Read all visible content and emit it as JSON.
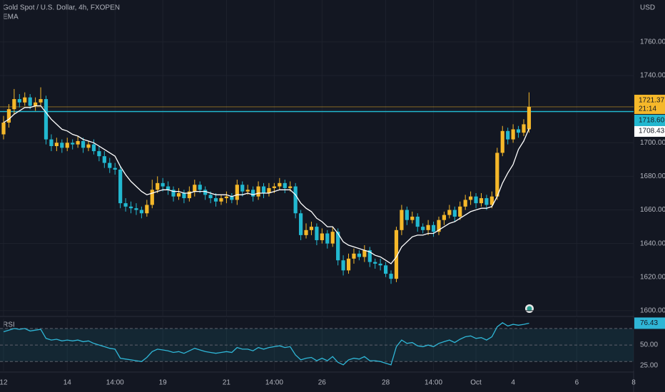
{
  "chart_data": [
    {
      "type": "candlestick",
      "title": "Gold Spot / U.S. Dollar, 4h, FXOPEN",
      "currency": "USD",
      "countdown": "21:14",
      "up_color": "#f5b82a",
      "down_color": "#22b8d0",
      "open": [
        1705,
        1712,
        1720,
        1726,
        1724,
        1727,
        1722,
        1724,
        1726,
        1702,
        1698,
        1700,
        1697,
        1700,
        1699,
        1701,
        1697,
        1699,
        1695,
        1692,
        1688,
        1685,
        1684,
        1664,
        1662,
        1661,
        1660,
        1658,
        1663,
        1672,
        1676,
        1674,
        1672,
        1668,
        1670,
        1667,
        1671,
        1675,
        1672,
        1669,
        1667,
        1665,
        1667,
        1668,
        1666,
        1675,
        1671,
        1672,
        1668,
        1674,
        1670,
        1673,
        1674,
        1676,
        1673,
        1674,
        1658,
        1645,
        1648,
        1650,
        1642,
        1646,
        1640,
        1647,
        1630,
        1624,
        1631,
        1634,
        1632,
        1636,
        1629,
        1628,
        1627,
        1622,
        1619,
        1648,
        1660,
        1654,
        1656,
        1650,
        1648,
        1651,
        1647,
        1654,
        1657,
        1660,
        1656,
        1662,
        1666,
        1668,
        1664,
        1667,
        1663,
        1668,
        1694,
        1707,
        1702,
        1708,
        1706,
        1708
      ],
      "high": [
        1716,
        1723,
        1732,
        1729,
        1730,
        1729,
        1727,
        1733,
        1728,
        1705,
        1703,
        1702,
        1703,
        1702,
        1704,
        1703,
        1701,
        1702,
        1698,
        1695,
        1691,
        1688,
        1686,
        1667,
        1665,
        1664,
        1662,
        1666,
        1678,
        1680,
        1679,
        1677,
        1674,
        1673,
        1672,
        1674,
        1678,
        1677,
        1674,
        1671,
        1670,
        1669,
        1671,
        1670,
        1678,
        1677,
        1675,
        1674,
        1677,
        1676,
        1676,
        1676,
        1679,
        1678,
        1677,
        1676,
        1660,
        1652,
        1653,
        1652,
        1649,
        1648,
        1650,
        1649,
        1633,
        1634,
        1637,
        1636,
        1639,
        1638,
        1631,
        1631,
        1629,
        1624,
        1650,
        1663,
        1662,
        1659,
        1658,
        1652,
        1654,
        1653,
        1656,
        1659,
        1663,
        1662,
        1665,
        1669,
        1671,
        1670,
        1670,
        1669,
        1671,
        1697,
        1710,
        1709,
        1711,
        1710,
        1714,
        1730
      ],
      "low": [
        1702,
        1709,
        1717,
        1721,
        1722,
        1720,
        1719,
        1722,
        1699,
        1695,
        1695,
        1694,
        1695,
        1696,
        1697,
        1694,
        1695,
        1693,
        1689,
        1685,
        1682,
        1681,
        1661,
        1659,
        1658,
        1657,
        1655,
        1656,
        1661,
        1670,
        1671,
        1669,
        1665,
        1666,
        1664,
        1665,
        1668,
        1670,
        1666,
        1664,
        1662,
        1663,
        1664,
        1664,
        1663,
        1668,
        1669,
        1665,
        1666,
        1667,
        1668,
        1670,
        1672,
        1670,
        1671,
        1655,
        1642,
        1643,
        1645,
        1639,
        1640,
        1637,
        1638,
        1627,
        1621,
        1622,
        1628,
        1630,
        1629,
        1626,
        1625,
        1624,
        1620,
        1616,
        1617,
        1645,
        1651,
        1652,
        1647,
        1646,
        1645,
        1644,
        1645,
        1651,
        1655,
        1653,
        1654,
        1660,
        1663,
        1661,
        1662,
        1660,
        1661,
        1666,
        1692,
        1699,
        1700,
        1703,
        1704,
        1706
      ],
      "close": [
        1712,
        1720,
        1726,
        1724,
        1727,
        1722,
        1724,
        1726,
        1702,
        1698,
        1700,
        1697,
        1700,
        1699,
        1701,
        1697,
        1699,
        1695,
        1692,
        1688,
        1685,
        1684,
        1664,
        1662,
        1661,
        1660,
        1658,
        1663,
        1672,
        1676,
        1674,
        1672,
        1668,
        1670,
        1667,
        1671,
        1675,
        1672,
        1669,
        1667,
        1665,
        1667,
        1668,
        1666,
        1675,
        1671,
        1672,
        1668,
        1674,
        1670,
        1673,
        1674,
        1676,
        1673,
        1674,
        1658,
        1645,
        1648,
        1650,
        1642,
        1646,
        1640,
        1647,
        1630,
        1624,
        1631,
        1634,
        1632,
        1636,
        1629,
        1628,
        1627,
        1622,
        1619,
        1648,
        1660,
        1654,
        1656,
        1650,
        1648,
        1651,
        1647,
        1654,
        1657,
        1660,
        1656,
        1662,
        1666,
        1668,
        1664,
        1667,
        1663,
        1668,
        1694,
        1707,
        1702,
        1708,
        1706,
        1711,
        1721.37
      ],
      "series": [
        {
          "name": "EMA",
          "color": "#ffffff",
          "values": [
            1712,
            1714,
            1717,
            1719,
            1721,
            1721,
            1722,
            1722,
            1718,
            1714,
            1711,
            1708,
            1707,
            1705,
            1704,
            1702,
            1701,
            1700,
            1698,
            1696,
            1694,
            1692,
            1686,
            1681,
            1677,
            1674,
            1671,
            1669,
            1670,
            1671,
            1672,
            1672,
            1671,
            1671,
            1670,
            1670,
            1671,
            1671,
            1671,
            1670,
            1669,
            1669,
            1669,
            1668,
            1669,
            1669,
            1670,
            1669,
            1670,
            1670,
            1670,
            1671,
            1672,
            1672,
            1672,
            1669,
            1664,
            1661,
            1659,
            1655,
            1653,
            1650,
            1650,
            1646,
            1641,
            1639,
            1638,
            1637,
            1636,
            1635,
            1633,
            1632,
            1630,
            1628,
            1632,
            1638,
            1641,
            1644,
            1645,
            1645,
            1646,
            1646,
            1648,
            1650,
            1652,
            1653,
            1655,
            1657,
            1659,
            1660,
            1661,
            1661,
            1662,
            1668,
            1676,
            1682,
            1687,
            1696,
            1701,
            1708.43
          ]
        }
      ],
      "price_line": {
        "value": 1718.6,
        "label": "1718.60",
        "color": "#22b8d0"
      },
      "xlim": [
        -0.67,
        118.7
      ],
      "xticks": [
        {
          "value": 0,
          "label": "12"
        },
        {
          "value": 12,
          "label": "14"
        },
        {
          "value": 21,
          "label": "14:00"
        },
        {
          "value": 30,
          "label": "19"
        },
        {
          "value": 42,
          "label": "21"
        },
        {
          "value": 51,
          "label": "14:00"
        },
        {
          "value": 60,
          "label": "26"
        },
        {
          "value": 72,
          "label": "28"
        },
        {
          "value": 81,
          "label": "14:00"
        },
        {
          "value": 89,
          "label": "Oct"
        },
        {
          "value": 96,
          "label": "4"
        },
        {
          "value": 108,
          "label": "6"
        },
        {
          "value": 118.7,
          "label": "8"
        }
      ],
      "ylim": [
        1597,
        1785
      ],
      "yticks": [
        {
          "value": 1600,
          "label": "1600.00"
        },
        {
          "value": 1620,
          "label": "1620.00"
        },
        {
          "value": 1640,
          "label": "1640.00"
        },
        {
          "value": 1660,
          "label": "1660.00"
        },
        {
          "value": 1680,
          "label": "1680.00"
        },
        {
          "value": 1700,
          "label": "1700.00"
        },
        {
          "value": 1720,
          "label": "1720.00"
        },
        {
          "value": 1740,
          "label": "1740.00"
        },
        {
          "value": 1760,
          "label": "1760.00"
        }
      ],
      "grid": true
    },
    {
      "type": "line",
      "title": "RSI",
      "color": "#2fb6d6",
      "values": [
        66,
        68,
        70,
        69,
        70,
        67,
        68,
        69,
        58,
        56,
        57,
        55,
        56,
        55,
        56,
        54,
        55,
        52,
        50,
        48,
        46,
        45,
        34,
        33,
        32,
        31,
        30,
        35,
        42,
        45,
        44,
        43,
        41,
        42,
        40,
        43,
        46,
        44,
        42,
        41,
        40,
        41,
        42,
        41,
        47,
        45,
        45,
        43,
        47,
        45,
        47,
        48,
        49,
        47,
        48,
        38,
        32,
        34,
        35,
        31,
        34,
        31,
        36,
        29,
        26,
        32,
        34,
        33,
        36,
        31,
        31,
        30,
        28,
        26,
        48,
        56,
        52,
        53,
        49,
        48,
        50,
        48,
        52,
        54,
        56,
        53,
        57,
        60,
        61,
        58,
        59,
        56,
        60,
        72,
        77,
        73,
        75,
        74,
        75,
        76.43
      ],
      "levels": [
        70,
        50,
        30
      ],
      "ylim": [
        19,
        82
      ],
      "yticks": [
        {
          "value": 50,
          "label": "50.00"
        },
        {
          "value": 25,
          "label": "25.00"
        }
      ]
    }
  ]
}
